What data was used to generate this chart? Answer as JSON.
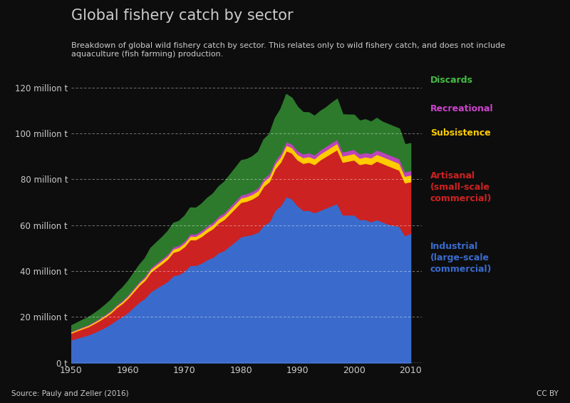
{
  "title": "Global fishery catch by sector",
  "subtitle": "Breakdown of global wild fishery catch by sector. This relates only to wild fishery catch, and does not include\naquaculture (fish farming) production.",
  "source": "Source: Pauly and Zeller (2016)",
  "license": "CC BY",
  "background_color": "#0d0d0d",
  "text_color": "#cccccc",
  "years": [
    1950,
    1951,
    1952,
    1953,
    1954,
    1955,
    1956,
    1957,
    1958,
    1959,
    1960,
    1961,
    1962,
    1963,
    1964,
    1965,
    1966,
    1967,
    1968,
    1969,
    1970,
    1971,
    1972,
    1973,
    1974,
    1975,
    1976,
    1977,
    1978,
    1979,
    1980,
    1981,
    1982,
    1983,
    1984,
    1985,
    1986,
    1987,
    1988,
    1989,
    1990,
    1991,
    1992,
    1993,
    1994,
    1995,
    1996,
    1997,
    1998,
    1999,
    2000,
    2001,
    2002,
    2003,
    2004,
    2005,
    2006,
    2007,
    2008,
    2009,
    2010
  ],
  "industrial": [
    10.0,
    10.8,
    11.5,
    12.2,
    13.2,
    14.3,
    15.6,
    17.0,
    18.8,
    20.2,
    22.0,
    24.3,
    26.5,
    28.2,
    31.0,
    32.5,
    34.0,
    35.5,
    38.0,
    38.5,
    40.0,
    42.5,
    42.5,
    43.5,
    45.0,
    46.0,
    48.0,
    49.0,
    51.0,
    53.0,
    55.0,
    55.5,
    56.0,
    57.0,
    60.0,
    61.5,
    66.5,
    68.5,
    72.5,
    71.5,
    68.5,
    66.5,
    66.5,
    65.5,
    66.5,
    67.5,
    68.5,
    69.5,
    64.5,
    64.5,
    64.5,
    62.5,
    62.5,
    61.5,
    62.5,
    61.5,
    60.5,
    60.0,
    59.5,
    55.5,
    56.5
  ],
  "artisanal": [
    3.0,
    3.2,
    3.4,
    3.6,
    3.9,
    4.2,
    4.5,
    4.8,
    5.3,
    5.7,
    6.2,
    6.7,
    7.3,
    7.8,
    8.5,
    8.9,
    9.2,
    9.7,
    10.2,
    10.4,
    10.7,
    11.2,
    11.2,
    11.6,
    12.0,
    12.5,
    13.0,
    13.5,
    14.0,
    14.5,
    15.0,
    15.0,
    15.5,
    16.0,
    17.0,
    17.5,
    18.0,
    19.0,
    20.0,
    20.0,
    20.0,
    20.5,
    21.0,
    21.0,
    22.0,
    22.5,
    23.0,
    23.5,
    23.0,
    23.5,
    24.0,
    24.0,
    24.5,
    25.0,
    25.5,
    25.5,
    25.5,
    25.0,
    24.5,
    23.0,
    22.5
  ],
  "subsistence": [
    0.5,
    0.52,
    0.54,
    0.56,
    0.6,
    0.63,
    0.67,
    0.72,
    0.78,
    0.83,
    0.9,
    0.97,
    1.05,
    1.1,
    1.2,
    1.25,
    1.3,
    1.35,
    1.42,
    1.45,
    1.5,
    1.55,
    1.55,
    1.6,
    1.65,
    1.7,
    1.75,
    1.8,
    1.85,
    1.9,
    1.95,
    2.0,
    2.0,
    2.05,
    2.1,
    2.15,
    2.2,
    2.3,
    2.4,
    2.4,
    2.45,
    2.5,
    2.5,
    2.55,
    2.6,
    2.65,
    2.7,
    2.75,
    2.7,
    2.75,
    2.8,
    2.8,
    2.85,
    2.9,
    2.95,
    3.0,
    3.0,
    3.0,
    3.0,
    2.9,
    2.9
  ],
  "recreational": [
    0.3,
    0.32,
    0.34,
    0.36,
    0.38,
    0.4,
    0.43,
    0.46,
    0.5,
    0.53,
    0.57,
    0.62,
    0.67,
    0.71,
    0.77,
    0.8,
    0.84,
    0.87,
    0.92,
    0.94,
    0.97,
    1.0,
    1.0,
    1.03,
    1.07,
    1.1,
    1.13,
    1.17,
    1.2,
    1.23,
    1.27,
    1.3,
    1.3,
    1.33,
    1.37,
    1.4,
    1.43,
    1.5,
    1.57,
    1.57,
    1.6,
    1.63,
    1.63,
    1.67,
    1.7,
    1.73,
    1.77,
    1.8,
    1.77,
    1.8,
    1.83,
    1.83,
    1.87,
    1.9,
    1.93,
    1.97,
    1.97,
    1.97,
    1.97,
    1.9,
    1.9
  ],
  "discards": [
    2.5,
    2.7,
    3.0,
    3.2,
    3.5,
    3.8,
    4.2,
    4.6,
    5.1,
    5.5,
    6.0,
    6.6,
    7.2,
    7.8,
    8.6,
    9.0,
    9.4,
    9.9,
    10.4,
    10.5,
    10.9,
    11.4,
    11.3,
    11.6,
    12.1,
    12.4,
    12.9,
    13.4,
    13.9,
    14.4,
    15.0,
    15.0,
    15.2,
    15.6,
    16.9,
    17.2,
    18.5,
    19.4,
    20.6,
    20.0,
    19.0,
    18.1,
    17.5,
    16.9,
    16.9,
    16.9,
    17.3,
    17.5,
    16.3,
    15.6,
    15.0,
    14.4,
    14.4,
    13.8,
    13.8,
    13.1,
    13.1,
    13.1,
    13.1,
    11.9,
    11.9
  ],
  "colors": {
    "industrial": "#3a6bcc",
    "artisanal": "#cc2222",
    "subsistence": "#ffcc00",
    "recreational": "#bb44bb",
    "discards": "#2d7a2d"
  },
  "legend_labels": {
    "discards": "Discards",
    "recreational": "Recreational",
    "subsistence": "Subsistence",
    "artisanal": "Artisanal\n(small-scale\ncommercial)",
    "industrial": "Industrial\n(large-scale\ncommercial)"
  },
  "legend_colors": {
    "discards": "#44bb44",
    "recreational": "#cc44cc",
    "subsistence": "#ffcc00",
    "artisanal": "#cc2222",
    "industrial": "#3a6bcc"
  },
  "yticks": [
    0,
    20,
    40,
    60,
    80,
    100,
    120
  ],
  "ytick_labels": [
    "0 t",
    "20 million t",
    "40 million t",
    "60 million t",
    "80 million t",
    "100 million t",
    "120 million t"
  ],
  "xlim": [
    1950,
    2012
  ],
  "ylim": [
    0,
    130
  ]
}
